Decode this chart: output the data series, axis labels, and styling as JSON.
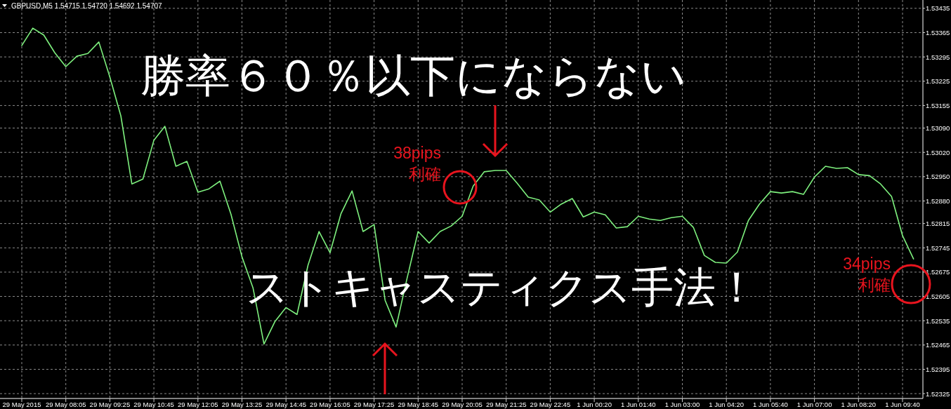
{
  "chart_data": {
    "type": "line",
    "title": "GBPUSD,M5  1.54715 1.54720 1.54692 1.54707",
    "annotations": [
      "勝率６０％以下にならない",
      "ストキャスティクス手法！",
      "38pips 利確",
      "34pips 利確"
    ],
    "categories": [
      "29 May 2015",
      null,
      null,
      null,
      "29 May 08:05",
      null,
      null,
      null,
      "29 May 09:25",
      null,
      null,
      null,
      "29 May 10:45",
      null,
      null,
      null,
      "29 May 12:05",
      null,
      null,
      null,
      "29 May 13:25",
      null,
      null,
      null,
      "29 May 14:45",
      null,
      null,
      null,
      "29 May 16:05",
      null,
      null,
      null,
      "29 May 17:25",
      null,
      null,
      null,
      "29 May 18:45",
      null,
      null,
      null,
      "29 May 20:05",
      null,
      null,
      null,
      "29 May 21:25",
      null,
      null,
      null,
      "29 May 22:45",
      null,
      null,
      null,
      "1 Jun 00:20",
      null,
      null,
      null,
      "1 Jun 01:40",
      null,
      null,
      null,
      "1 Jun 03:00",
      null,
      null,
      null,
      "1 Jun 04:20",
      null,
      null,
      null,
      "1 Jun 05:40",
      null,
      null,
      null,
      "1 Jun 07:00",
      null,
      null,
      null,
      "1 Jun 08:20",
      null,
      null,
      null,
      "1 Jun 09:40",
      null
    ],
    "series": [
      {
        "color": "#7ef07e",
        "values": [
          1.53328,
          1.53378,
          1.53358,
          1.53307,
          1.53267,
          1.53297,
          1.53305,
          1.53338,
          1.53237,
          1.53125,
          1.52929,
          1.52943,
          1.53055,
          1.53095,
          1.5298,
          1.52994,
          1.52905,
          1.52915,
          1.52937,
          1.52842,
          1.52719,
          1.5263,
          1.52468,
          1.52533,
          1.52573,
          1.52553,
          1.52695,
          1.52792,
          1.52731,
          1.52844,
          1.52909,
          1.52792,
          1.52812,
          1.52594,
          1.52517,
          1.52658,
          1.52792,
          1.52759,
          1.52792,
          1.52808,
          1.52836,
          1.52923,
          1.52964,
          1.52968,
          1.52968,
          1.52931,
          1.52891,
          1.52883,
          1.52848,
          1.52871,
          1.52887,
          1.52834,
          1.52848,
          1.5284,
          1.52802,
          1.52806,
          1.52836,
          1.52828,
          1.52824,
          1.52832,
          1.52836,
          1.52804,
          1.52723,
          1.52703,
          1.52701,
          1.52733,
          1.52824,
          1.52871,
          1.52907,
          1.52903,
          1.52907,
          1.52899,
          1.52949,
          1.5298,
          1.52974,
          1.52976,
          1.52956,
          1.52953,
          1.52929,
          1.52893,
          1.5278,
          1.52713
        ]
      }
    ],
    "ylim": [
      1.52311,
      1.53459
    ],
    "yticks": [
      1.53435,
      1.53365,
      1.53295,
      1.53225,
      1.53155,
      {
        "value": 1.5309,
        "label": "1.53090"
      },
      {
        "value": 1.5302,
        "label": "1.53020"
      },
      {
        "value": 1.5295,
        "label": "1.52950"
      },
      {
        "value": 1.5288,
        "label": "1.52880"
      },
      1.52815,
      1.52745,
      1.52675,
      1.52605,
      1.52535,
      1.52465,
      1.52395,
      1.52325
    ],
    "grid": true
  }
}
